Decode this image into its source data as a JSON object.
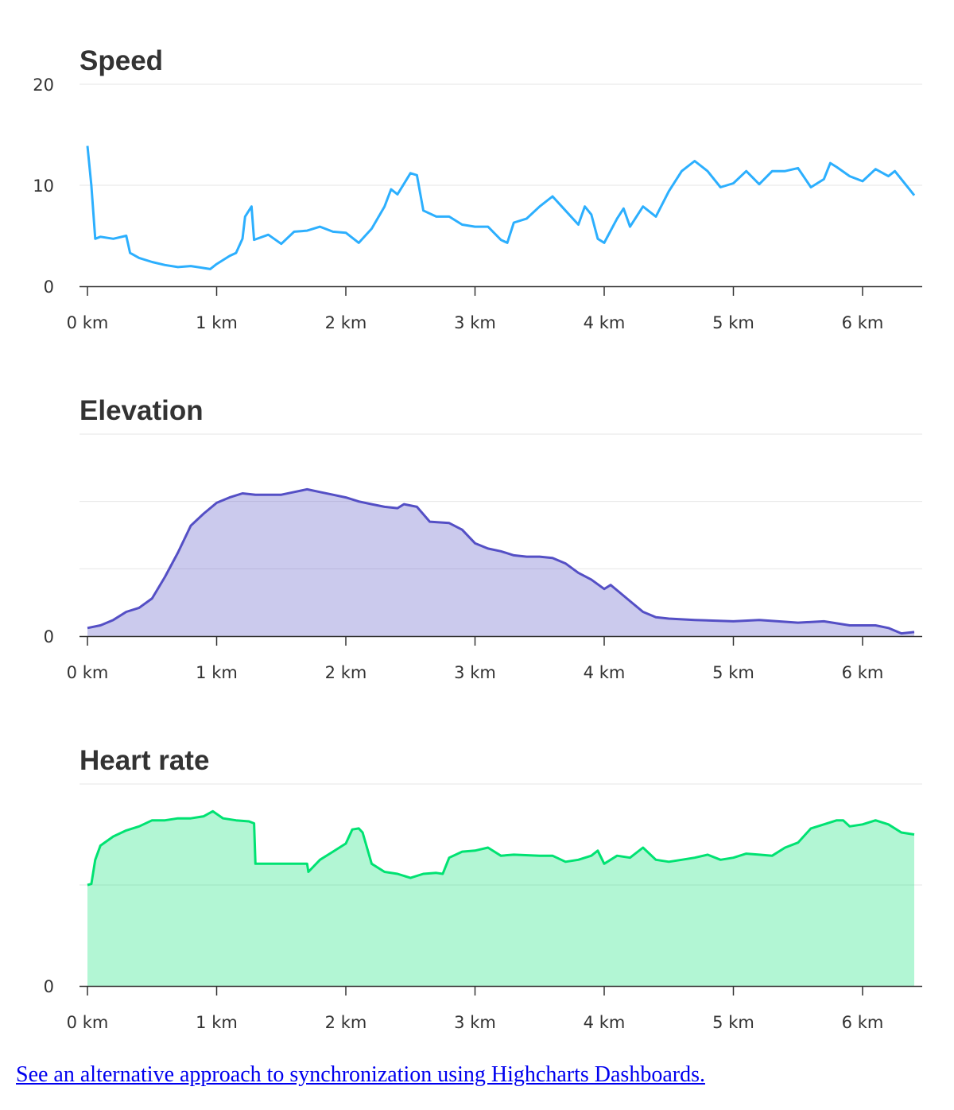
{
  "charts": [
    {
      "title": "Speed",
      "type": "line",
      "color": "#2caffe",
      "fill": false,
      "xlabel": "",
      "ylabel": "",
      "xlim": [
        0,
        6.45
      ],
      "ylim": [
        0,
        20
      ],
      "yticks": [
        0,
        10,
        20
      ],
      "yTickLabels": [
        "0",
        "10",
        "20"
      ],
      "xticks": [
        0,
        1,
        2,
        3,
        4,
        5,
        6
      ],
      "xTickLabels": [
        "0 km",
        "1 km",
        "2 km",
        "3 km",
        "4 km",
        "5 km",
        "6 km"
      ],
      "grid": true,
      "x": [
        0,
        0.03,
        0.06,
        0.1,
        0.2,
        0.3,
        0.33,
        0.4,
        0.5,
        0.6,
        0.7,
        0.8,
        0.9,
        0.95,
        1.0,
        1.1,
        1.15,
        1.2,
        1.22,
        1.27,
        1.29,
        1.4,
        1.5,
        1.6,
        1.7,
        1.8,
        1.9,
        2.0,
        2.1,
        2.2,
        2.3,
        2.35,
        2.4,
        2.5,
        2.55,
        2.6,
        2.7,
        2.8,
        2.9,
        3.0,
        3.1,
        3.2,
        3.25,
        3.3,
        3.4,
        3.5,
        3.6,
        3.7,
        3.8,
        3.85,
        3.9,
        3.95,
        4.0,
        4.1,
        4.15,
        4.2,
        4.3,
        4.4,
        4.5,
        4.6,
        4.7,
        4.8,
        4.9,
        5.0,
        5.1,
        5.2,
        5.3,
        5.4,
        5.5,
        5.6,
        5.7,
        5.75,
        5.8,
        5.9,
        6.0,
        6.1,
        6.2,
        6.25,
        6.35,
        6.4
      ],
      "values": [
        13.9,
        10,
        4.7,
        4.9,
        4.7,
        5.0,
        3.3,
        2.8,
        2.4,
        2.1,
        1.9,
        2.0,
        1.8,
        1.7,
        2.2,
        3.0,
        3.3,
        4.7,
        6.9,
        7.9,
        4.6,
        5.1,
        4.2,
        5.4,
        5.5,
        5.9,
        5.4,
        5.3,
        4.3,
        5.7,
        7.9,
        9.6,
        9.1,
        11.2,
        11.0,
        7.5,
        6.9,
        6.9,
        6.1,
        5.9,
        5.9,
        4.6,
        4.3,
        6.3,
        6.7,
        7.9,
        8.9,
        7.5,
        6.1,
        7.9,
        7.1,
        4.7,
        4.3,
        6.7,
        7.7,
        5.9,
        7.9,
        6.9,
        9.4,
        11.4,
        12.4,
        11.4,
        9.8,
        10.2,
        11.4,
        10.1,
        11.4,
        11.4,
        11.7,
        9.8,
        10.6,
        12.2,
        11.8,
        10.9,
        10.4,
        11.6,
        10.9,
        11.4,
        9.8,
        9.0
      ]
    },
    {
      "title": "Elevation",
      "type": "area",
      "color": "#544fc5",
      "fill": true,
      "xlabel": "",
      "ylabel": "",
      "xlim": [
        0,
        6.45
      ],
      "ylim": [
        0,
        150
      ],
      "yticks": [
        0,
        50,
        100,
        150
      ],
      "yTickLabels": [
        "0"
      ],
      "xticks": [
        0,
        1,
        2,
        3,
        4,
        5,
        6
      ],
      "xTickLabels": [
        "0 km",
        "1 km",
        "2 km",
        "3 km",
        "4 km",
        "5 km",
        "6 km"
      ],
      "grid": true,
      "x": [
        0,
        0.1,
        0.2,
        0.3,
        0.4,
        0.5,
        0.6,
        0.7,
        0.8,
        0.9,
        1.0,
        1.1,
        1.2,
        1.3,
        1.4,
        1.5,
        1.6,
        1.7,
        1.8,
        1.9,
        2.0,
        2.1,
        2.2,
        2.3,
        2.4,
        2.45,
        2.55,
        2.65,
        2.8,
        2.9,
        3.0,
        3.1,
        3.2,
        3.3,
        3.4,
        3.5,
        3.6,
        3.7,
        3.8,
        3.9,
        4.0,
        4.05,
        4.1,
        4.2,
        4.3,
        4.4,
        4.5,
        4.7,
        5.0,
        5.2,
        5.5,
        5.7,
        5.9,
        6.1,
        6.2,
        6.3,
        6.4
      ],
      "values": [
        6,
        8,
        12,
        18,
        21,
        28,
        44,
        62,
        82,
        91,
        99,
        103,
        106,
        105,
        105,
        105,
        107,
        109,
        107,
        105,
        103,
        100,
        98,
        96,
        95,
        98,
        96,
        85,
        84,
        79,
        69,
        65,
        63,
        60,
        59,
        59,
        58,
        54,
        47,
        42,
        35,
        38,
        34,
        26,
        18,
        14,
        13,
        12,
        11,
        12,
        10,
        11,
        8,
        8,
        6,
        2,
        3
      ]
    },
    {
      "title": "Heart rate",
      "type": "area",
      "color": "#00e272",
      "fill": true,
      "xlabel": "",
      "ylabel": "",
      "xlim": [
        0,
        6.45
      ],
      "ylim": [
        0,
        200
      ],
      "yticks": [
        0,
        100,
        200
      ],
      "yTickLabels": [
        "0"
      ],
      "xticks": [
        0,
        1,
        2,
        3,
        4,
        5,
        6
      ],
      "xTickLabels": [
        "0 km",
        "1 km",
        "2 km",
        "3 km",
        "4 km",
        "5 km",
        "6 km"
      ],
      "grid": true,
      "x": [
        0,
        0.03,
        0.06,
        0.1,
        0.2,
        0.3,
        0.4,
        0.5,
        0.6,
        0.7,
        0.8,
        0.9,
        0.97,
        1.05,
        1.15,
        1.25,
        1.29,
        1.3,
        1.7,
        1.71,
        1.8,
        1.9,
        2.0,
        2.05,
        2.1,
        2.13,
        2.2,
        2.3,
        2.4,
        2.5,
        2.6,
        2.7,
        2.75,
        2.8,
        2.9,
        3.0,
        3.1,
        3.2,
        3.3,
        3.5,
        3.6,
        3.7,
        3.8,
        3.9,
        3.95,
        4.0,
        4.1,
        4.2,
        4.3,
        4.4,
        4.5,
        4.6,
        4.7,
        4.8,
        4.9,
        5.0,
        5.1,
        5.2,
        5.3,
        5.4,
        5.5,
        5.6,
        5.7,
        5.8,
        5.85,
        5.9,
        6.0,
        6.1,
        6.2,
        6.3,
        6.4
      ],
      "values": [
        100,
        101,
        125,
        139,
        148,
        154,
        158,
        164,
        164,
        166,
        166,
        168,
        173,
        166,
        164,
        163,
        161,
        121,
        121,
        113,
        125,
        133,
        141,
        155,
        156,
        152,
        121,
        113,
        111,
        107,
        111,
        112,
        111,
        127,
        133,
        134,
        137,
        129,
        130,
        129,
        129,
        123,
        125,
        129,
        134,
        121,
        129,
        127,
        137,
        125,
        123,
        125,
        127,
        130,
        125,
        127,
        131,
        130,
        129,
        137,
        142,
        156,
        160,
        164,
        164,
        158,
        160,
        164,
        160,
        152,
        150
      ]
    }
  ],
  "footer": {
    "link_text": "See an alternative approach to synchronization using Highcharts Dashboards."
  }
}
